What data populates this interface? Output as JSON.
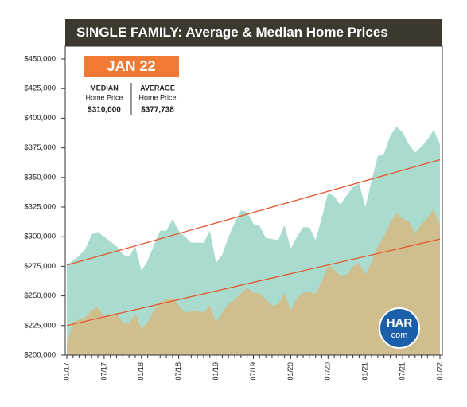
{
  "chart_data": {
    "type": "area",
    "title_bold": "SINGLE FAMILY:",
    "title": "Average & Median Home Prices",
    "badge": "JAN 22",
    "median_box": {
      "heading": "MEDIAN",
      "sub": "Home Price",
      "value": "$310,000"
    },
    "average_box": {
      "heading": "AVERAGE",
      "sub": "Home Price",
      "value": "$377,738"
    },
    "logo": {
      "top": "HAR",
      "bottom": "com"
    },
    "categories": [
      "01/17",
      null,
      null,
      null,
      null,
      null,
      "07/17",
      null,
      null,
      null,
      null,
      null,
      "01/18",
      null,
      null,
      null,
      null,
      null,
      "07/18",
      null,
      null,
      null,
      null,
      null,
      "01/19",
      null,
      null,
      null,
      null,
      null,
      "07/19",
      null,
      null,
      null,
      null,
      null,
      "01/20",
      null,
      null,
      null,
      null,
      null,
      "07/20",
      null,
      null,
      null,
      null,
      null,
      "01/21",
      null,
      null,
      null,
      null,
      null,
      "07/21",
      null,
      null,
      null,
      null,
      null,
      "01/22"
    ],
    "series": [
      {
        "name": "Average",
        "color": "#a9dccf",
        "trend_color": "#e8552d",
        "trend": [
          276000,
          365000
        ],
        "values": [
          276000,
          280000,
          284000,
          290000,
          302000,
          304000,
          300000,
          296000,
          292000,
          285000,
          283000,
          292000,
          271000,
          280000,
          293000,
          305000,
          305000,
          315000,
          305000,
          300000,
          295000,
          295000,
          295000,
          305000,
          278000,
          285000,
          300000,
          312000,
          322000,
          321000,
          311000,
          309000,
          299000,
          298000,
          297000,
          310000,
          290000,
          300000,
          308000,
          308000,
          297000,
          316000,
          337000,
          334000,
          327000,
          335000,
          342000,
          345000,
          325000,
          347000,
          368000,
          370000,
          385000,
          393000,
          388000,
          378000,
          371000,
          376000,
          382000,
          390000,
          378000
        ]
      },
      {
        "name": "Median",
        "color": "#cfbf8f",
        "trend_color": "#e8552d",
        "trend": [
          225000,
          298000
        ],
        "values": [
          210000,
          228000,
          230000,
          232000,
          238000,
          241000,
          232000,
          235000,
          235000,
          228000,
          227000,
          235000,
          222000,
          228000,
          238000,
          245000,
          247000,
          248000,
          242000,
          236000,
          237000,
          237000,
          236000,
          242000,
          228000,
          236000,
          243000,
          247000,
          252000,
          257000,
          253000,
          252000,
          247000,
          242000,
          243000,
          252000,
          238000,
          248000,
          253000,
          253000,
          252000,
          262000,
          276000,
          272000,
          267000,
          268000,
          275000,
          278000,
          268000,
          278000,
          292000,
          300000,
          312000,
          320000,
          315000,
          313000,
          303000,
          310000,
          316000,
          323000,
          310000
        ]
      }
    ],
    "ylim": [
      200000,
      450000
    ],
    "yticks": [
      {
        "value": 200000,
        "label": "$200,000"
      },
      {
        "value": 225000,
        "label": "$225,000"
      },
      {
        "value": 250000,
        "label": "$250,000"
      },
      {
        "value": 275000,
        "label": "$275,000"
      },
      {
        "value": 300000,
        "label": "$300,000"
      },
      {
        "value": 325000,
        "label": "$325,000"
      },
      {
        "value": 350000,
        "label": "$350,000"
      },
      {
        "value": 375000,
        "label": "$375,000"
      },
      {
        "value": 400000,
        "label": "$400,000"
      },
      {
        "value": 425000,
        "label": "$425,000"
      },
      {
        "value": 450000,
        "label": "$450,000"
      }
    ]
  }
}
